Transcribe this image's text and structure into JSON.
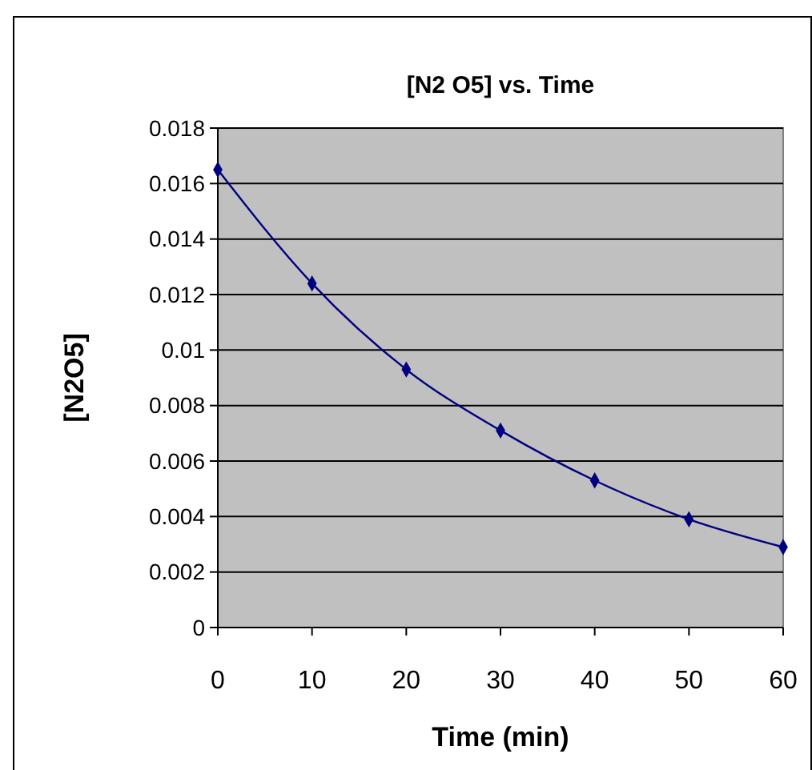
{
  "chart_data": {
    "type": "line",
    "title": "[N2 O5] vs. Time",
    "xlabel": "Time (min)",
    "ylabel": "[N2O5]",
    "x": [
      0,
      10,
      20,
      30,
      40,
      50,
      60
    ],
    "series": [
      {
        "color": "#000080",
        "values": [
          0.0165,
          0.0124,
          0.0093,
          0.0071,
          0.0053,
          0.0039,
          0.0029
        ]
      }
    ],
    "xlim": [
      0,
      60
    ],
    "xticks": [
      0,
      10,
      20,
      30,
      40,
      50,
      60
    ],
    "ylim": [
      0,
      0.018
    ],
    "yticks": [
      0,
      0.002,
      0.004,
      0.006,
      0.008,
      0.01,
      0.012,
      0.014,
      0.016,
      0.018
    ],
    "grid": "y",
    "marker": "diamond",
    "line_style": "solid"
  }
}
